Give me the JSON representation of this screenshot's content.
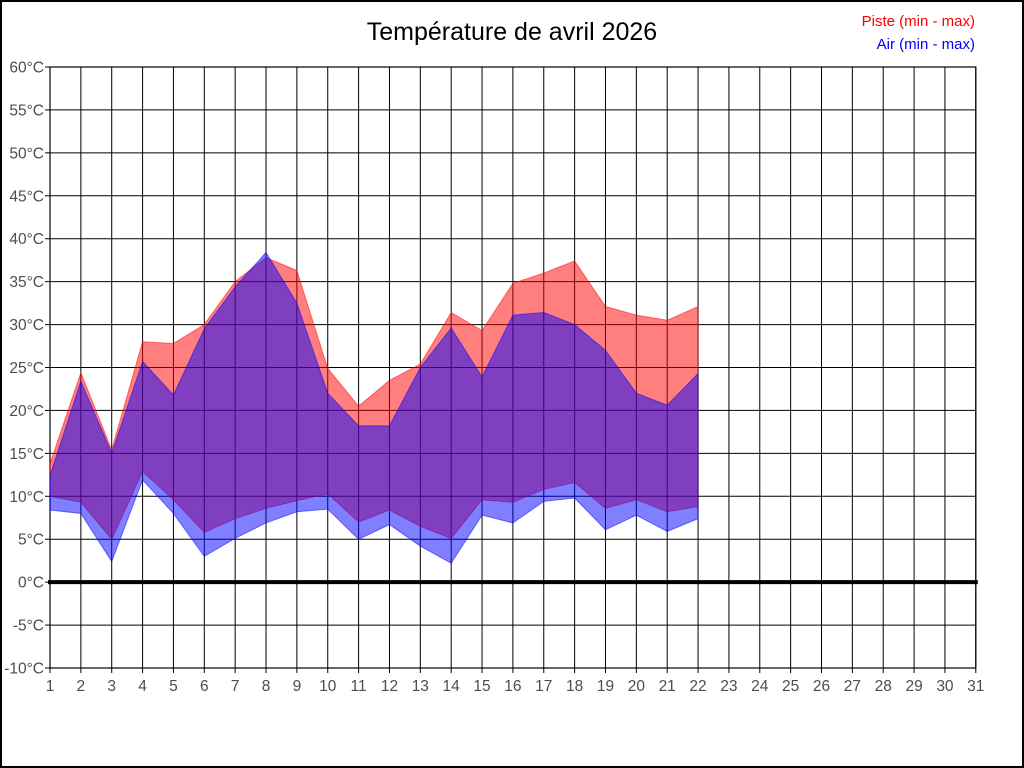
{
  "chart_data": {
    "type": "area",
    "title": "Température de avril 2026",
    "legend": [
      {
        "name": "piste",
        "label": "Piste (min - max)",
        "color": "#ff0000"
      },
      {
        "name": "air",
        "label": "Air (min - max)",
        "color": "#0000ff"
      }
    ],
    "ylabel_unit": "°C",
    "ylim": [
      -10,
      60
    ],
    "ytick_step": 5,
    "ytick_labels": [
      "60°C",
      "55°C",
      "50°C",
      "45°C",
      "40°C",
      "35°C",
      "30°C",
      "25°C",
      "20°C",
      "15°C",
      "10°C",
      "5°C",
      "0°C",
      "-5°C",
      "-10°C"
    ],
    "xlim": [
      1,
      31
    ],
    "xtick_labels": [
      "1",
      "2",
      "3",
      "4",
      "5",
      "6",
      "7",
      "8",
      "9",
      "10",
      "11",
      "12",
      "13",
      "14",
      "15",
      "16",
      "17",
      "18",
      "19",
      "20",
      "21",
      "22",
      "23",
      "24",
      "25",
      "26",
      "27",
      "28",
      "29",
      "30",
      "31"
    ],
    "zero_line": 0,
    "grid": true,
    "days": [
      1,
      2,
      3,
      4,
      5,
      6,
      7,
      8,
      9,
      10,
      11,
      12,
      13,
      14,
      15,
      16,
      17,
      18,
      19,
      20,
      21,
      22
    ],
    "series": [
      {
        "name": "Piste",
        "fill_color": "#ff0000",
        "fill_opacity": 0.5,
        "min": [
          10.0,
          9.3,
          5.0,
          12.9,
          9.6,
          5.8,
          7.4,
          8.6,
          9.5,
          10.3,
          7.0,
          8.4,
          6.5,
          5.1,
          9.6,
          9.3,
          10.8,
          11.6,
          8.6,
          9.6,
          8.2,
          8.8
        ],
        "max": [
          13.8,
          24.4,
          15.4,
          28.0,
          27.8,
          30.0,
          35.0,
          37.8,
          36.3,
          24.9,
          20.5,
          23.5,
          25.4,
          31.4,
          29.3,
          34.8,
          36.0,
          37.4,
          32.1,
          31.1,
          30.5,
          32.1
        ]
      },
      {
        "name": "Air",
        "fill_color": "#0000ff",
        "fill_opacity": 0.5,
        "min": [
          8.4,
          8.0,
          2.4,
          11.9,
          8.0,
          3.0,
          5.1,
          6.9,
          8.2,
          8.5,
          5.0,
          6.7,
          4.2,
          2.2,
          7.8,
          6.9,
          9.4,
          9.8,
          6.1,
          7.8,
          5.9,
          7.4
        ],
        "max": [
          12.4,
          23.4,
          15.0,
          25.7,
          21.8,
          29.5,
          34.4,
          38.4,
          32.5,
          22.0,
          18.2,
          18.2,
          25.0,
          29.6,
          23.9,
          31.1,
          31.4,
          30.0,
          27.0,
          22.0,
          20.6,
          24.3
        ]
      }
    ]
  }
}
